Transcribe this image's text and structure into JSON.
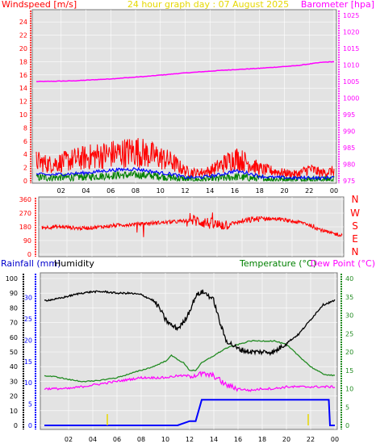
{
  "header": {
    "left_title": "Windspeed [m/s]",
    "center_title": "24 hour graph day : 07 August 2025",
    "right_title": "Barometer [hpa]"
  },
  "colors": {
    "wind_avg": "#0000ff",
    "wind_gust": "#ff0000",
    "wind_low": "#008000",
    "baro": "#ff00ff",
    "direction": "#ff0000",
    "humidity": "#000000",
    "temperature": "#228b22",
    "dewpoint": "#ff00ff",
    "rain": "#0000ff",
    "grid_bg": "#e3e3e3",
    "title_red": "#ff0000",
    "title_yellow": "#e6d800",
    "title_magenta": "#ff00ff",
    "title_blue": "#0000cc",
    "title_green": "#008000"
  },
  "direction_labels": [
    "N",
    "W",
    "S",
    "E",
    "N"
  ],
  "bottom_titles": {
    "rain_label": "Rainfall (mm)",
    "humidity_label": "Humidity",
    "temperature_label": "Temperature (°C)",
    "dewpoint_label": "Dew Point (°C)"
  },
  "chart_data": [
    {
      "type": "line",
      "title": "24 hour graph day : 07 August 2025",
      "x_ticks": [
        "02",
        "04",
        "06",
        "08",
        "10",
        "12",
        "14",
        "16",
        "18",
        "20",
        "22",
        "00"
      ],
      "y_left": {
        "label": "Windspeed [m/s]",
        "range": [
          0,
          25
        ],
        "ticks": [
          0,
          2,
          4,
          6,
          8,
          10,
          12,
          14,
          16,
          18,
          20,
          22,
          24
        ]
      },
      "y_right": {
        "label": "Barometer [hpa]",
        "range": [
          975,
          1025
        ],
        "ticks": [
          975,
          980,
          985,
          990,
          995,
          1000,
          1005,
          1010,
          1015,
          1020,
          1025
        ]
      },
      "series": [
        {
          "name": "Barometer",
          "axis": "right",
          "x": [
            0,
            3,
            6,
            9,
            12,
            15,
            18,
            21,
            23,
            24
          ],
          "values": [
            1005,
            1005.2,
            1005.8,
            1006.6,
            1007.6,
            1008.4,
            1009.0,
            1009.8,
            1010.8,
            1011.0
          ]
        },
        {
          "name": "Gust",
          "axis": "left",
          "x": [
            0,
            1,
            2,
            3,
            4,
            5,
            6,
            7,
            8,
            9,
            10,
            11,
            12,
            13,
            14,
            15,
            16,
            17,
            18,
            19,
            20,
            21,
            22,
            23,
            24
          ],
          "values": [
            3.0,
            2.5,
            2.8,
            3.2,
            3.5,
            3.8,
            4.0,
            4.2,
            4.5,
            4.0,
            3.5,
            2.8,
            1.5,
            1.2,
            1.5,
            2.5,
            3.5,
            2.8,
            1.8,
            1.5,
            1.2,
            1.0,
            1.8,
            1.2,
            1.5
          ]
        },
        {
          "name": "Average",
          "axis": "left",
          "x": [
            0,
            1,
            2,
            3,
            4,
            5,
            6,
            7,
            8,
            9,
            10,
            11,
            12,
            13,
            14,
            15,
            16,
            17,
            18,
            19,
            20,
            21,
            22,
            23,
            24
          ],
          "values": [
            1.0,
            0.9,
            1.0,
            1.1,
            1.2,
            1.4,
            1.6,
            1.7,
            1.8,
            1.5,
            1.2,
            1.0,
            0.5,
            0.5,
            0.7,
            1.0,
            1.5,
            1.2,
            0.7,
            0.5,
            0.5,
            0.4,
            0.5,
            0.4,
            0.6
          ]
        },
        {
          "name": "Low",
          "axis": "left",
          "x": [
            0,
            2,
            4,
            6,
            8,
            10,
            12,
            14,
            16,
            18,
            20,
            22,
            24
          ],
          "values": [
            0.5,
            0.5,
            0.6,
            0.8,
            0.9,
            0.7,
            0.2,
            0.2,
            0.6,
            0.3,
            0.2,
            0.2,
            0.2
          ]
        }
      ]
    },
    {
      "type": "line",
      "title": "",
      "y_left": {
        "range": [
          0,
          360
        ],
        "ticks": [
          0,
          90,
          180,
          270,
          360
        ]
      },
      "series": [
        {
          "name": "Direction",
          "x": [
            0,
            1,
            2,
            3,
            4,
            5,
            6,
            7,
            8,
            9,
            10,
            11,
            12,
            13,
            14,
            15,
            16,
            17,
            18,
            19,
            20,
            21,
            22,
            23,
            24
          ],
          "values": [
            175,
            180,
            178,
            170,
            175,
            182,
            190,
            195,
            200,
            205,
            210,
            215,
            225,
            210,
            190,
            200,
            215,
            230,
            235,
            230,
            215,
            205,
            170,
            140,
            125
          ]
        }
      ]
    },
    {
      "type": "line",
      "title": "",
      "x_ticks": [
        "02",
        "04",
        "06",
        "08",
        "10",
        "12",
        "14",
        "16",
        "18",
        "20",
        "22",
        "00"
      ],
      "y_left": {
        "range": [
          0,
          100
        ],
        "ticks": [
          0,
          10,
          20,
          30,
          40,
          50,
          60,
          70,
          80,
          90,
          100
        ]
      },
      "y_left2": {
        "label": "Rainfall (mm)",
        "range": [
          0,
          30
        ],
        "ticks": [
          0,
          5,
          10,
          15,
          20,
          25,
          30
        ]
      },
      "y_right": {
        "label": "Temperature (°C)",
        "range": [
          0,
          40
        ],
        "ticks": [
          0,
          5,
          10,
          15,
          20,
          25,
          30,
          35,
          40
        ]
      },
      "series": [
        {
          "name": "Humidity",
          "axis": "left",
          "x": [
            0,
            1,
            2,
            3,
            4,
            5,
            6,
            7,
            8,
            9,
            9.5,
            10,
            10.5,
            11,
            11.5,
            12,
            12.5,
            13,
            13.5,
            14,
            14.5,
            15,
            16,
            17,
            18,
            19,
            20,
            21,
            22,
            23,
            24
          ],
          "values": [
            85,
            86,
            88,
            90,
            91,
            91,
            90,
            90,
            89,
            85,
            80,
            72,
            68,
            66,
            70,
            78,
            88,
            91,
            89,
            85,
            70,
            58,
            52,
            50,
            50,
            50,
            56,
            62,
            72,
            82,
            85
          ]
        },
        {
          "name": "Temperature",
          "axis": "right",
          "x": [
            0,
            1,
            2,
            3,
            4,
            5,
            6,
            7,
            8,
            9,
            10,
            10.5,
            11,
            11.5,
            12,
            12.5,
            13,
            14,
            15,
            16,
            17,
            18,
            19,
            20,
            21,
            22,
            23,
            24
          ],
          "values": [
            13.5,
            13.2,
            12.5,
            12,
            12,
            12.5,
            13,
            14,
            15,
            16,
            17.5,
            19,
            18,
            17,
            15,
            15,
            17,
            19,
            21,
            22,
            23,
            23,
            23,
            22,
            19,
            16,
            14,
            13.5
          ]
        },
        {
          "name": "Dew Point",
          "axis": "right",
          "x": [
            0,
            1,
            2,
            3,
            4,
            5,
            6,
            7,
            8,
            9,
            10,
            11,
            12,
            13,
            14,
            15,
            16,
            17,
            18,
            19,
            20,
            21,
            22,
            23,
            24
          ],
          "values": [
            10,
            10,
            10,
            10.5,
            11,
            11.5,
            12,
            12.5,
            13,
            13,
            13,
            13.5,
            13.5,
            14,
            13.5,
            11,
            10,
            9.5,
            10,
            10,
            10.5,
            10.5,
            10.5,
            10.5,
            10.5
          ]
        },
        {
          "name": "Rainfall",
          "axis": "left2",
          "x": [
            0,
            5,
            10,
            11,
            12,
            12.5,
            13,
            13.5,
            16,
            20,
            23.5,
            23.6,
            24
          ],
          "values": [
            0,
            0,
            0,
            0,
            1,
            1,
            6,
            6,
            6,
            6,
            6,
            0,
            0
          ]
        }
      ]
    }
  ]
}
